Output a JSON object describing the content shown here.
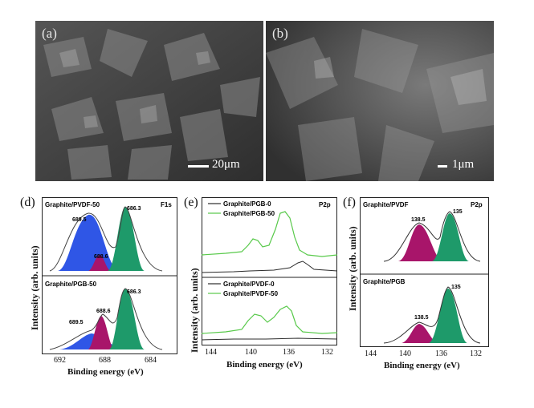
{
  "sem_a": {
    "letter": "(a)",
    "scale": "20μm"
  },
  "sem_b": {
    "letter": "(b)",
    "scale": "1μm"
  },
  "panel_d": {
    "letter": "(d)",
    "top_title": "Graphite/PVDF-50",
    "region": "F1s",
    "top_peaks": [
      "689.5",
      "688.6",
      "686.3"
    ],
    "bottom_title": "Graphite/PGB-50",
    "bottom_peaks": [
      "689.5",
      "688.6",
      "686.3"
    ],
    "xticks": [
      "692",
      "688",
      "684"
    ],
    "xlabel": "Binding energy (eV)",
    "ylabel": "Intensity (arb. units)"
  },
  "panel_e": {
    "letter": "(e)",
    "region": "P2p",
    "top_legend": [
      "Graphite/PGB-0",
      "Graphite/PGB-50"
    ],
    "bottom_legend": [
      "Graphite/PVDF-0",
      "Graphite/PVDF-50"
    ],
    "xticks": [
      "144",
      "140",
      "136",
      "132"
    ],
    "xlabel": "Binding energy (eV)",
    "ylabel": "Intensity (arb. units)"
  },
  "panel_f": {
    "letter": "(f)",
    "region": "P2p",
    "top_title": "Graphite/PVDF",
    "top_peaks": [
      "138.5",
      "135"
    ],
    "bottom_title": "Graphite/PGB",
    "bottom_peaks": [
      "138.5",
      "135"
    ],
    "xticks": [
      "144",
      "140",
      "136",
      "132"
    ],
    "xlabel": "Binding energy (eV)",
    "ylabel": "Intensity (arb. units)"
  },
  "colors": {
    "blue": "#2f56e6",
    "green": "#1e9a6a",
    "magenta": "#a8156a",
    "light_green": "#58c94a",
    "dark_line": "#2b2b2b"
  }
}
